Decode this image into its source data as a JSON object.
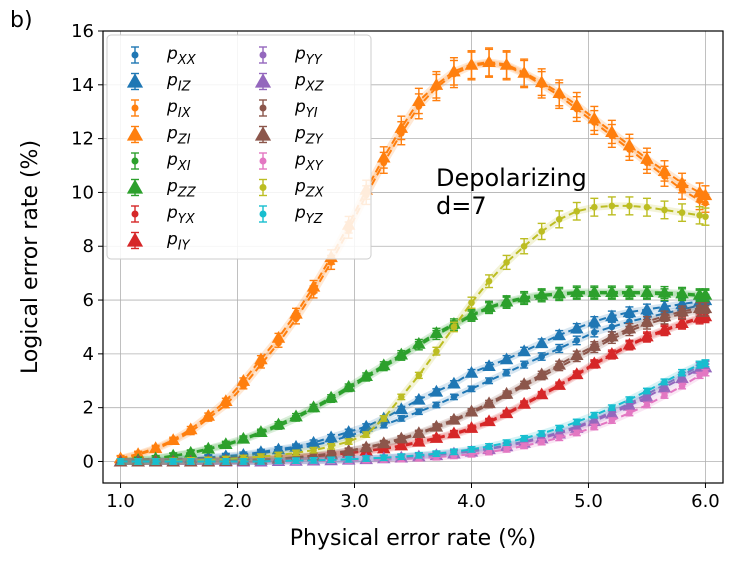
{
  "chart_data": {
    "type": "line",
    "panel_label": "b)",
    "xlabel": "Physical error rate (%)",
    "ylabel": "Logical error rate (%)",
    "xlim": [
      0.85,
      6.15
    ],
    "ylim": [
      -0.8,
      16
    ],
    "xticks": [
      "1.0",
      "2.0",
      "3.0",
      "4.0",
      "5.0",
      "6.0"
    ],
    "yticks": [
      "0",
      "2",
      "4",
      "6",
      "8",
      "10",
      "12",
      "14",
      "16"
    ],
    "grid": true,
    "legend_position": "top-left",
    "annotation": [
      "Depolarizing",
      "d=7"
    ],
    "x": [
      1.0,
      1.15,
      1.3,
      1.45,
      1.6,
      1.75,
      1.9,
      2.05,
      2.2,
      2.35,
      2.5,
      2.65,
      2.8,
      2.95,
      3.1,
      3.25,
      3.4,
      3.55,
      3.7,
      3.85,
      4.0,
      4.15,
      4.3,
      4.45,
      4.6,
      4.75,
      4.9,
      5.05,
      5.2,
      5.35,
      5.5,
      5.65,
      5.8,
      5.95,
      6.0
    ],
    "series": [
      {
        "name": "p_XX",
        "sub": "XX",
        "color": "#1f77b4",
        "marker": "circle",
        "values": [
          0.0,
          0.0,
          0.02,
          0.05,
          0.08,
          0.12,
          0.15,
          0.2,
          0.3,
          0.4,
          0.5,
          0.6,
          0.75,
          0.95,
          1.15,
          1.35,
          1.6,
          1.85,
          2.1,
          2.4,
          2.7,
          3.0,
          3.3,
          3.6,
          3.9,
          4.2,
          4.5,
          4.8,
          5.0,
          5.2,
          5.35,
          5.5,
          5.65,
          5.8,
          5.85
        ]
      },
      {
        "name": "p_IZ",
        "sub": "IZ",
        "color": "#1f77b4",
        "marker": "triangle",
        "values": [
          0.0,
          0.0,
          0.03,
          0.08,
          0.12,
          0.15,
          0.2,
          0.25,
          0.35,
          0.45,
          0.55,
          0.7,
          0.9,
          1.1,
          1.3,
          1.6,
          1.95,
          2.3,
          2.6,
          2.9,
          3.3,
          3.55,
          3.8,
          4.1,
          4.4,
          4.7,
          4.95,
          5.2,
          5.4,
          5.55,
          5.65,
          5.75,
          5.85,
          5.95,
          6.0
        ]
      },
      {
        "name": "p_IX",
        "sub": "IX",
        "color": "#ff7f0e",
        "marker": "circle",
        "values": [
          0.1,
          0.25,
          0.45,
          0.75,
          1.1,
          1.6,
          2.1,
          2.8,
          3.6,
          4.4,
          5.3,
          6.3,
          7.4,
          8.6,
          9.9,
          11.1,
          12.2,
          13.2,
          13.9,
          14.4,
          14.7,
          14.8,
          14.7,
          14.4,
          14.0,
          13.6,
          13.1,
          12.6,
          12.1,
          11.6,
          11.1,
          10.6,
          10.1,
          9.7,
          9.6
        ]
      },
      {
        "name": "p_ZI",
        "sub": "ZI",
        "color": "#ff7f0e",
        "marker": "triangle",
        "values": [
          0.12,
          0.28,
          0.5,
          0.8,
          1.2,
          1.7,
          2.25,
          3.0,
          3.8,
          4.6,
          5.5,
          6.5,
          7.6,
          8.8,
          10.1,
          11.3,
          12.4,
          13.4,
          14.0,
          14.5,
          14.75,
          14.85,
          14.75,
          14.45,
          14.1,
          13.7,
          13.25,
          12.75,
          12.25,
          11.75,
          11.25,
          10.8,
          10.35,
          10.0,
          9.9
        ]
      },
      {
        "name": "p_XI",
        "sub": "XI",
        "color": "#2ca02c",
        "marker": "circle",
        "values": [
          0.0,
          0.05,
          0.1,
          0.2,
          0.3,
          0.45,
          0.6,
          0.8,
          1.05,
          1.3,
          1.6,
          1.95,
          2.3,
          2.7,
          3.1,
          3.5,
          3.9,
          4.3,
          4.7,
          5.05,
          5.4,
          5.7,
          5.9,
          6.05,
          6.15,
          6.2,
          6.25,
          6.25,
          6.25,
          6.25,
          6.25,
          6.2,
          6.2,
          6.15,
          6.15
        ]
      },
      {
        "name": "p_ZZ",
        "sub": "ZZ",
        "color": "#2ca02c",
        "marker": "triangle",
        "values": [
          0.0,
          0.06,
          0.12,
          0.22,
          0.33,
          0.48,
          0.65,
          0.85,
          1.1,
          1.38,
          1.68,
          2.02,
          2.38,
          2.78,
          3.18,
          3.58,
          3.98,
          4.38,
          4.78,
          5.12,
          5.45,
          5.75,
          5.95,
          6.1,
          6.2,
          6.25,
          6.3,
          6.3,
          6.3,
          6.3,
          6.3,
          6.28,
          6.25,
          6.2,
          6.2
        ]
      },
      {
        "name": "p_YX",
        "sub": "YX",
        "color": "#d62728",
        "marker": "circle",
        "values": [
          0.0,
          0.0,
          0.0,
          0.0,
          0.0,
          0.02,
          0.03,
          0.05,
          0.07,
          0.1,
          0.14,
          0.18,
          0.24,
          0.3,
          0.38,
          0.46,
          0.56,
          0.7,
          0.85,
          1.0,
          1.2,
          1.45,
          1.75,
          2.1,
          2.45,
          2.8,
          3.2,
          3.6,
          3.95,
          4.3,
          4.6,
          4.85,
          5.1,
          5.3,
          5.35
        ]
      },
      {
        "name": "p_IY",
        "sub": "IY",
        "color": "#d62728",
        "marker": "triangle",
        "values": [
          0.0,
          0.0,
          0.0,
          0.0,
          0.0,
          0.02,
          0.03,
          0.05,
          0.08,
          0.11,
          0.15,
          0.2,
          0.26,
          0.32,
          0.4,
          0.49,
          0.6,
          0.74,
          0.88,
          1.05,
          1.25,
          1.5,
          1.8,
          2.15,
          2.5,
          2.85,
          3.25,
          3.65,
          4.0,
          4.35,
          4.65,
          4.9,
          5.15,
          5.35,
          5.4
        ]
      },
      {
        "name": "p_YY",
        "sub": "YY",
        "color": "#9467bd",
        "marker": "circle",
        "values": [
          0.0,
          0.0,
          0.0,
          0.0,
          0.0,
          0.0,
          0.0,
          0.0,
          0.0,
          0.02,
          0.03,
          0.04,
          0.06,
          0.08,
          0.1,
          0.13,
          0.17,
          0.21,
          0.26,
          0.32,
          0.39,
          0.48,
          0.6,
          0.74,
          0.9,
          1.08,
          1.3,
          1.55,
          1.85,
          2.15,
          2.5,
          2.85,
          3.2,
          3.55,
          3.6
        ]
      },
      {
        "name": "p_XZ",
        "sub": "XZ",
        "color": "#9467bd",
        "marker": "triangle",
        "values": [
          0.0,
          0.0,
          0.0,
          0.0,
          0.0,
          0.0,
          0.0,
          0.0,
          0.0,
          0.02,
          0.03,
          0.04,
          0.05,
          0.07,
          0.09,
          0.12,
          0.15,
          0.19,
          0.24,
          0.3,
          0.37,
          0.46,
          0.57,
          0.7,
          0.86,
          1.04,
          1.25,
          1.5,
          1.78,
          2.08,
          2.4,
          2.75,
          3.1,
          3.45,
          3.5
        ]
      },
      {
        "name": "p_YI",
        "sub": "YI",
        "color": "#8c564b",
        "marker": "circle",
        "values": [
          0.0,
          0.0,
          0.0,
          0.0,
          0.0,
          0.0,
          0.02,
          0.04,
          0.07,
          0.1,
          0.14,
          0.2,
          0.28,
          0.38,
          0.5,
          0.65,
          0.82,
          1.02,
          1.25,
          1.5,
          1.8,
          2.1,
          2.45,
          2.8,
          3.15,
          3.5,
          3.85,
          4.2,
          4.55,
          4.85,
          5.1,
          5.3,
          5.5,
          5.6,
          5.6
        ]
      },
      {
        "name": "p_ZY",
        "sub": "ZY",
        "color": "#8c564b",
        "marker": "triangle",
        "values": [
          0.0,
          0.0,
          0.0,
          0.0,
          0.0,
          0.0,
          0.02,
          0.04,
          0.07,
          0.11,
          0.16,
          0.22,
          0.3,
          0.4,
          0.53,
          0.68,
          0.86,
          1.06,
          1.3,
          1.56,
          1.86,
          2.17,
          2.52,
          2.88,
          3.24,
          3.6,
          3.96,
          4.3,
          4.65,
          4.95,
          5.2,
          5.4,
          5.58,
          5.7,
          5.7
        ]
      },
      {
        "name": "p_XY",
        "sub": "XY",
        "color": "#e377c2",
        "marker": "circle",
        "values": [
          0.0,
          0.0,
          0.0,
          0.0,
          0.0,
          0.0,
          0.0,
          0.0,
          0.0,
          0.0,
          0.0,
          0.02,
          0.03,
          0.04,
          0.05,
          0.07,
          0.09,
          0.12,
          0.16,
          0.21,
          0.27,
          0.35,
          0.45,
          0.58,
          0.72,
          0.88,
          1.06,
          1.28,
          1.52,
          1.8,
          2.1,
          2.45,
          2.8,
          3.2,
          3.3
        ]
      },
      {
        "name": "p_ZX",
        "sub": "ZX",
        "color": "#bcbd22",
        "marker": "circle",
        "values": [
          0.0,
          0.0,
          0.0,
          0.02,
          0.04,
          0.06,
          0.09,
          0.13,
          0.18,
          0.24,
          0.32,
          0.42,
          0.56,
          0.74,
          1.0,
          1.6,
          2.4,
          3.2,
          4.1,
          5.0,
          5.9,
          6.7,
          7.4,
          8.0,
          8.55,
          9.0,
          9.3,
          9.45,
          9.5,
          9.5,
          9.45,
          9.35,
          9.25,
          9.15,
          9.1
        ]
      },
      {
        "name": "p_YZ",
        "sub": "YZ",
        "color": "#17becf",
        "marker": "circle",
        "values": [
          0.0,
          0.0,
          0.0,
          0.0,
          0.0,
          0.0,
          0.0,
          0.0,
          0.0,
          0.02,
          0.03,
          0.04,
          0.06,
          0.08,
          0.11,
          0.14,
          0.18,
          0.23,
          0.29,
          0.36,
          0.45,
          0.56,
          0.7,
          0.86,
          1.04,
          1.24,
          1.47,
          1.72,
          2.0,
          2.3,
          2.62,
          2.96,
          3.3,
          3.6,
          3.65
        ]
      }
    ]
  }
}
